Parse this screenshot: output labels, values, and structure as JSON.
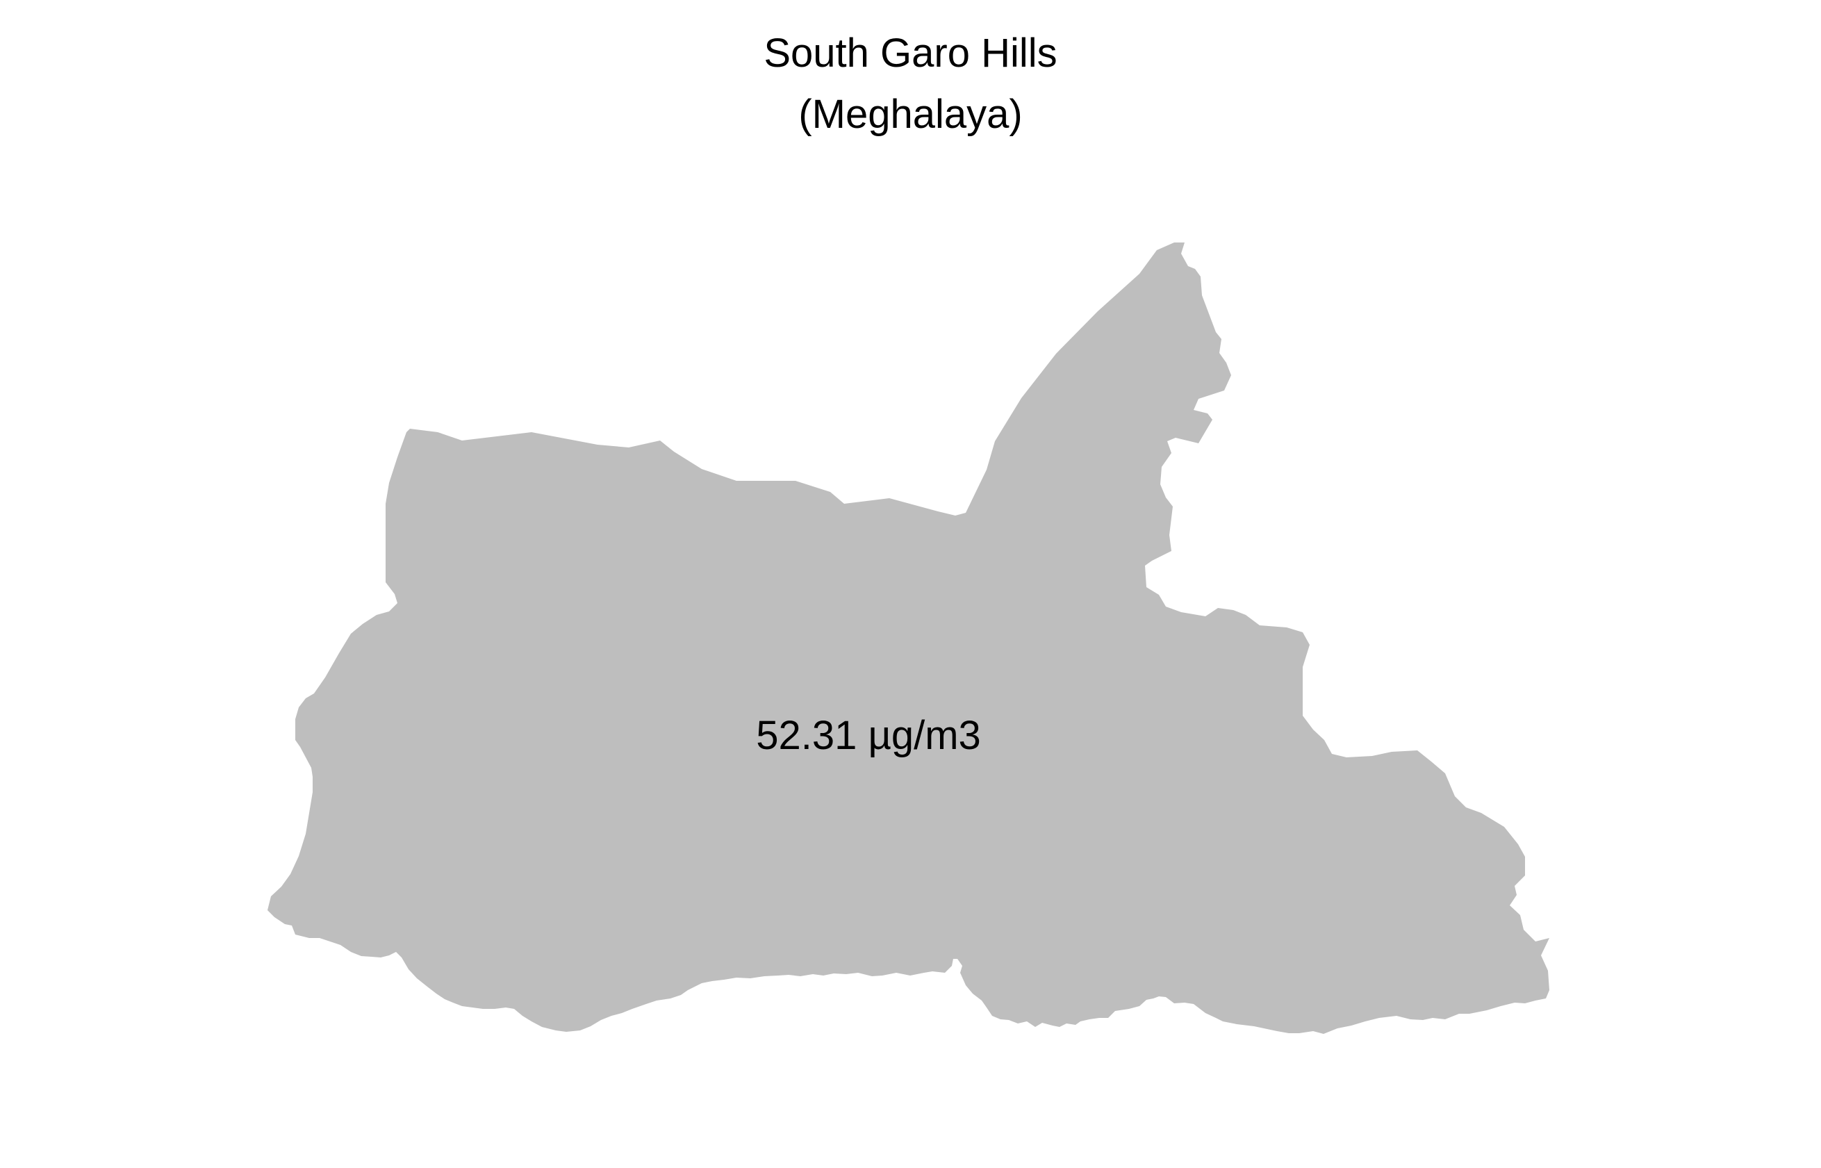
{
  "map": {
    "title": "South Garo Hills",
    "subtitle": "(Meghalaya)",
    "region_label": "52.31 µg/m3",
    "fill_color": "#bebebe",
    "background_color": "#ffffff"
  }
}
